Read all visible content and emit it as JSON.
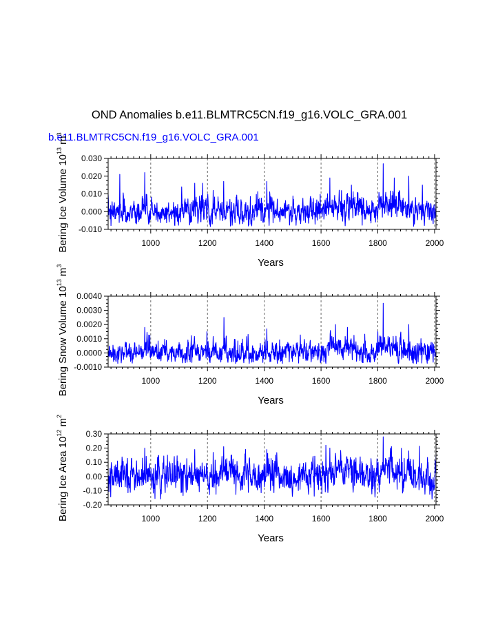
{
  "title": "OND Anomalies b.e11.BLMTRC5CN.f19_g16.VOLC_GRA.001",
  "subtitle": "b.e11.BLMTRC5CN.f19_g16.VOLC_GRA.001",
  "colors": {
    "series": "#0000ff",
    "axis": "#000000",
    "grid": "#666666",
    "subtitle": "#0000ff"
  },
  "chart_data": [
    {
      "type": "line",
      "ylabel": {
        "text": "Bering Ice Volume 10",
        "exp": "13",
        "unit": " m",
        "unit_exp": "3"
      },
      "xlabel": "Years",
      "xlim": [
        850,
        2005
      ],
      "ylim": [
        -0.01,
        0.03
      ],
      "yticks": [
        "-0.010",
        "0.000",
        "0.010",
        "0.020",
        "0.030"
      ],
      "ytick_values": [
        -0.01,
        0.0,
        0.01,
        0.02,
        0.03
      ],
      "xticks": [
        "1000",
        "1200",
        "1400",
        "1600",
        "1800",
        "2000"
      ],
      "xtick_values": [
        1000,
        1200,
        1400,
        1600,
        1800,
        2000
      ],
      "vgrid": [
        1000,
        1200,
        1400,
        1600,
        1800,
        2000
      ],
      "series": [
        {
          "name": "b.e11.BLMTRC5CN.f19_g16.VOLC_GRA.001",
          "base": 0.0,
          "noise": 0.0035,
          "floor": -0.0085,
          "peaks": [
            [
              891,
              0.021
            ],
            [
              979,
              0.022
            ],
            [
              1155,
              0.016
            ],
            [
              1183,
              0.016
            ],
            [
              1257,
              0.017
            ],
            [
              1409,
              0.017
            ],
            [
              1631,
              0.019
            ],
            [
              1707,
              0.015
            ],
            [
              1819,
              0.027
            ],
            [
              1858,
              0.019
            ],
            [
              1909,
              0.02
            ],
            [
              1957,
              0.015
            ]
          ],
          "bumps": [
            [
              1620,
              1720,
              0.003
            ],
            [
              1800,
              1880,
              0.004
            ]
          ]
        }
      ]
    },
    {
      "type": "line",
      "ylabel": {
        "text": "Bering Snow Volume 10",
        "exp": "13",
        "unit": " m",
        "unit_exp": "3"
      },
      "xlabel": "Years",
      "xlim": [
        850,
        2005
      ],
      "ylim": [
        -0.001,
        0.004
      ],
      "yticks": [
        "-0.0010",
        "0.0000",
        "0.0010",
        "0.0020",
        "0.0030",
        "0.0040"
      ],
      "ytick_values": [
        -0.001,
        0.0,
        0.001,
        0.002,
        0.003,
        0.004
      ],
      "xticks": [
        "1000",
        "1200",
        "1400",
        "1600",
        "1800",
        "2000"
      ],
      "xtick_values": [
        1000,
        1200,
        1400,
        1600,
        1800,
        2000
      ],
      "vgrid": [
        1000,
        1200,
        1400,
        1600,
        1800,
        2000
      ],
      "series": [
        {
          "name": "b.e11.BLMTRC5CN.f19_g16.VOLC_GRA.001",
          "base": 0.0,
          "noise": 0.00038,
          "floor": -0.00075,
          "peaks": [
            [
              979,
              0.0018
            ],
            [
              1198,
              0.0015
            ],
            [
              1258,
              0.0025
            ],
            [
              1409,
              0.0017
            ],
            [
              1651,
              0.002
            ],
            [
              1693,
              0.0018
            ],
            [
              1800,
              0.0015
            ],
            [
              1819,
              0.0035
            ],
            [
              1909,
              0.002
            ]
          ],
          "bumps": [
            [
              1620,
              1720,
              0.0003
            ],
            [
              1795,
              1880,
              0.0004
            ]
          ]
        }
      ]
    },
    {
      "type": "line",
      "ylabel": {
        "text": "Bering Ice Area 10",
        "exp": "12",
        "unit": " m",
        "unit_exp": "2"
      },
      "xlabel": "Years",
      "xlim": [
        850,
        2005
      ],
      "ylim": [
        -0.2,
        0.3
      ],
      "yticks": [
        "-0.20",
        "-0.10",
        "0.00",
        "0.10",
        "0.20",
        "0.30"
      ],
      "ytick_values": [
        -0.2,
        -0.1,
        0.0,
        0.1,
        0.2,
        0.3
      ],
      "xticks": [
        "1000",
        "1200",
        "1400",
        "1600",
        "1800",
        "2000"
      ],
      "xtick_values": [
        1000,
        1200,
        1400,
        1600,
        1800,
        2000
      ],
      "vgrid": [
        1000,
        1200,
        1400,
        1600,
        1800,
        2000
      ],
      "series": [
        {
          "name": "b.e11.BLMTRC5CN.f19_g16.VOLC_GRA.001",
          "base": 0.0,
          "noise": 0.055,
          "floor": -0.16,
          "peaks": [
            [
              979,
              0.2
            ],
            [
              1155,
              0.19
            ],
            [
              1257,
              0.21
            ],
            [
              1409,
              0.19
            ],
            [
              1631,
              0.2
            ],
            [
              1819,
              0.28
            ],
            [
              1909,
              0.18
            ]
          ],
          "bumps": [
            [
              1620,
              1720,
              0.03
            ],
            [
              1800,
              1880,
              0.04
            ]
          ]
        }
      ]
    }
  ]
}
